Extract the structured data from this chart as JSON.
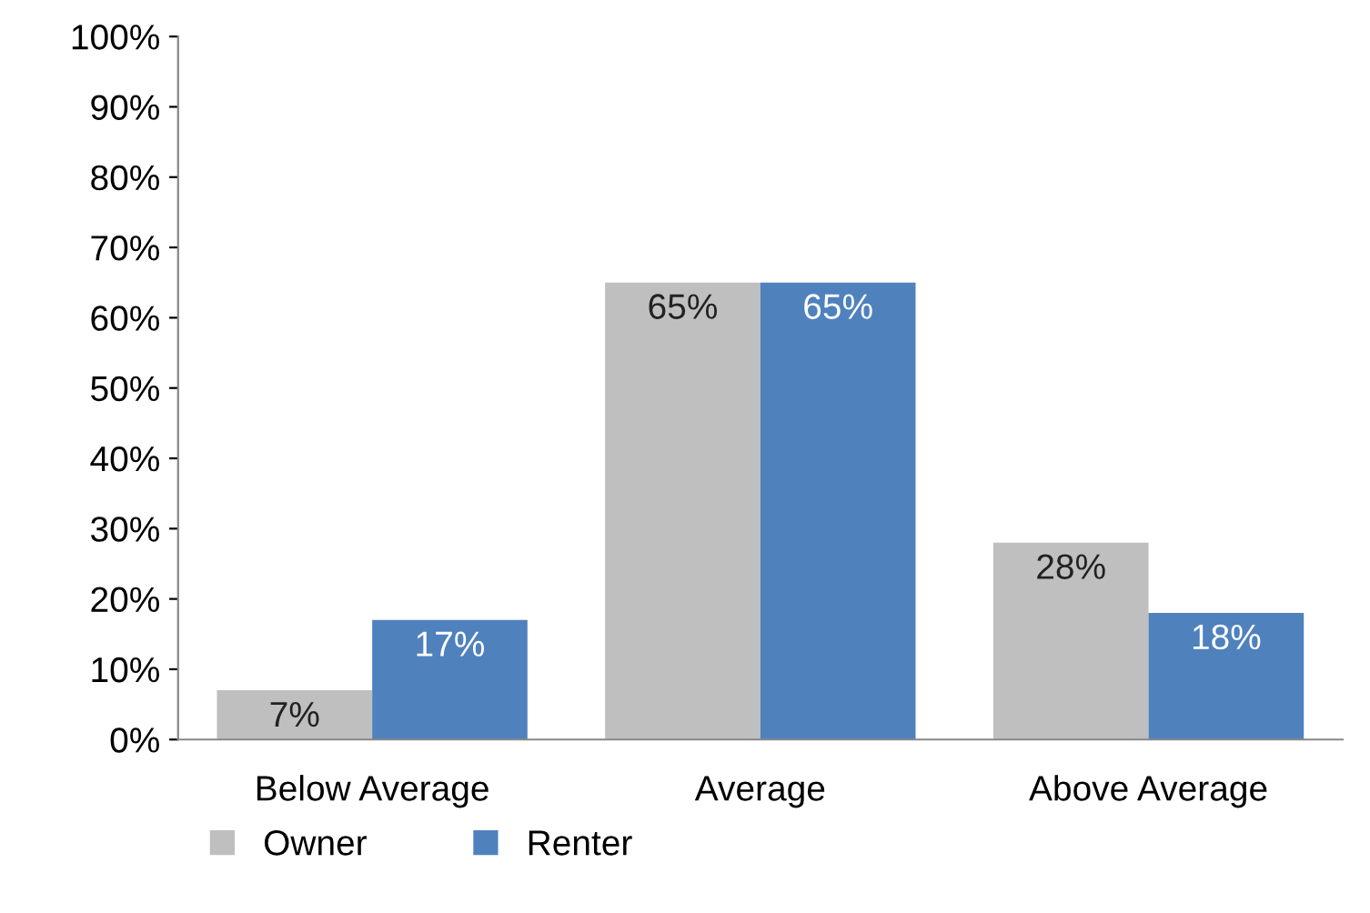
{
  "chart_data": {
    "type": "bar",
    "categories": [
      "Below Average",
      "Average",
      "Above Average"
    ],
    "series": [
      {
        "name": "Owner",
        "color": "#bfbfbf",
        "values": [
          7,
          65,
          28
        ],
        "value_labels": [
          "7%",
          "65%",
          "28%"
        ]
      },
      {
        "name": "Renter",
        "color": "#4f81bd",
        "values": [
          17,
          65,
          18
        ],
        "value_labels": [
          "17%",
          "65%",
          "18%"
        ]
      }
    ],
    "ylim": [
      0,
      100
    ],
    "yticks": [
      {
        "value": 0,
        "label": "0%"
      },
      {
        "value": 10,
        "label": "10%"
      },
      {
        "value": 20,
        "label": "20%"
      },
      {
        "value": 30,
        "label": "30%"
      },
      {
        "value": 40,
        "label": "40%"
      },
      {
        "value": 50,
        "label": "50%"
      },
      {
        "value": 60,
        "label": "60%"
      },
      {
        "value": 70,
        "label": "70%"
      },
      {
        "value": 80,
        "label": "80%"
      },
      {
        "value": 90,
        "label": "90%"
      },
      {
        "value": 100,
        "label": "100%"
      }
    ],
    "grid": false,
    "legend": "bottom left"
  }
}
